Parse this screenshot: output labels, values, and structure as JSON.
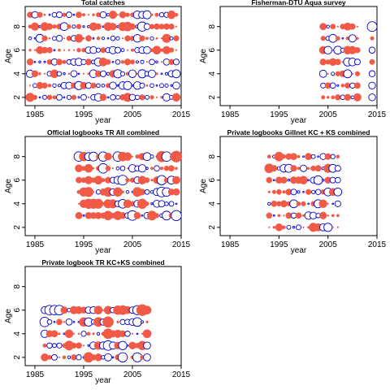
{
  "colors": {
    "positive": "#f05a46",
    "negative": "#0000cc",
    "frame": "#000000"
  },
  "chart_data": [
    {
      "type": "scatter",
      "title": "Total catches",
      "xlabel": "year",
      "ylabel": "Age",
      "xlim": [
        1983,
        2015
      ],
      "ylim": [
        1.3,
        9.7
      ],
      "xticks": [
        1985,
        1995,
        2005,
        2015
      ],
      "yticks": [
        2,
        4,
        6,
        8
      ],
      "x_range": [
        1984,
        2014
      ],
      "ages": [
        2,
        3,
        4,
        5,
        6,
        7,
        8,
        9
      ],
      "seed": 11,
      "max_r": 6,
      "big_points": [
        {
          "x": 2003,
          "y": 8,
          "v": 0.8
        },
        {
          "x": 2004,
          "y": 8,
          "v": 0.9
        },
        {
          "x": 2007,
          "y": 8,
          "v": -0.9
        },
        {
          "x": 2012,
          "y": 7,
          "v": 0.8
        },
        {
          "x": 2004,
          "y": 2,
          "v": 0.8
        },
        {
          "x": 2014,
          "y": 2,
          "v": 0.7
        },
        {
          "x": 1984,
          "y": 2,
          "v": 0.8
        }
      ]
    },
    {
      "type": "scatter",
      "title": "Fisherman-DTU Aqua survey",
      "xlabel": "year",
      "ylabel": "Age",
      "xlim": [
        1983,
        2015
      ],
      "ylim": [
        1.3,
        9.7
      ],
      "xticks": [
        1985,
        1995,
        2005,
        2015
      ],
      "yticks": [
        2,
        4,
        6,
        8
      ],
      "x_range": [
        2004,
        2011
      ],
      "ages": [
        2,
        3,
        4,
        5,
        6,
        7,
        8
      ],
      "seed": 23,
      "max_r": 6,
      "big_points": [
        {
          "x": 2014,
          "y": 8,
          "v": -1.0
        },
        {
          "x": 2014,
          "y": 2,
          "v": -0.5
        },
        {
          "x": 2014,
          "y": 3,
          "v": -0.5
        },
        {
          "x": 2014,
          "y": 4,
          "v": -0.4
        },
        {
          "x": 2014,
          "y": 5,
          "v": 0.3
        },
        {
          "x": 2014,
          "y": 6,
          "v": -0.4
        },
        {
          "x": 2014,
          "y": 7,
          "v": 0.15
        }
      ]
    },
    {
      "type": "scatter",
      "title": "Official logbooks TR All combined",
      "xlabel": "year",
      "ylabel": "Age",
      "xlim": [
        1983,
        2015
      ],
      "ylim": [
        1.3,
        9.7
      ],
      "xticks": [
        1985,
        1995,
        2005,
        2015
      ],
      "yticks": [
        2,
        4,
        6,
        8
      ],
      "x_range": [
        1994,
        2014
      ],
      "ages": [
        3,
        4,
        5,
        6,
        7,
        8
      ],
      "seed": 37,
      "max_r": 7,
      "big_points": [
        {
          "x": 1994,
          "y": 8,
          "v": -0.7
        },
        {
          "x": 2014,
          "y": 8,
          "v": 1.0
        },
        {
          "x": 2011,
          "y": 8,
          "v": 0.9
        },
        {
          "x": 2012,
          "y": 8,
          "v": -0.7
        },
        {
          "x": 2014,
          "y": 3,
          "v": -0.8
        },
        {
          "x": 2012,
          "y": 3,
          "v": -0.6
        },
        {
          "x": 2002,
          "y": 8,
          "v": -0.7
        }
      ]
    },
    {
      "type": "scatter",
      "title": "Private logbooks Gillnet KC + KS combined",
      "xlabel": "year",
      "ylabel": "Age",
      "xlim": [
        1983,
        2015
      ],
      "ylim": [
        1.3,
        9.7
      ],
      "xticks": [
        1985,
        1995,
        2005,
        2015
      ],
      "yticks": [
        2,
        4,
        6,
        8
      ],
      "x_range": [
        1993,
        2007
      ],
      "ages": [
        2,
        3,
        4,
        5,
        6,
        7,
        8
      ],
      "seed": 53,
      "max_r": 6,
      "big_points": [
        {
          "x": 1993,
          "y": 7,
          "v": 0.9
        },
        {
          "x": 1995,
          "y": 8,
          "v": 0.9
        },
        {
          "x": 2003,
          "y": 6,
          "v": -0.8
        },
        {
          "x": 2002,
          "y": 2,
          "v": 0.8
        },
        {
          "x": 2005,
          "y": 7,
          "v": 0.8
        },
        {
          "x": 2003,
          "y": 4,
          "v": -0.7
        }
      ]
    },
    {
      "type": "scatter",
      "title": "Private logbook TR KC+KS combined",
      "xlabel": "year",
      "ylabel": "Age",
      "xlim": [
        1983,
        2015
      ],
      "ylim": [
        1.3,
        9.7
      ],
      "xticks": [
        1985,
        1995,
        2005,
        2015
      ],
      "yticks": [
        2,
        4,
        6,
        8
      ],
      "x_range": [
        1987,
        2008
      ],
      "ages": [
        2,
        3,
        4,
        5,
        6
      ],
      "seed": 71,
      "max_r": 7,
      "big_points": [
        {
          "x": 2007,
          "y": 6,
          "v": 1.0
        },
        {
          "x": 2000,
          "y": 5,
          "v": 0.9
        },
        {
          "x": 2000,
          "y": 4,
          "v": 0.8
        },
        {
          "x": 1988,
          "y": 6,
          "v": -0.7
        },
        {
          "x": 1987,
          "y": 5,
          "v": -0.7
        },
        {
          "x": 1996,
          "y": 2,
          "v": 0.8
        }
      ]
    }
  ]
}
